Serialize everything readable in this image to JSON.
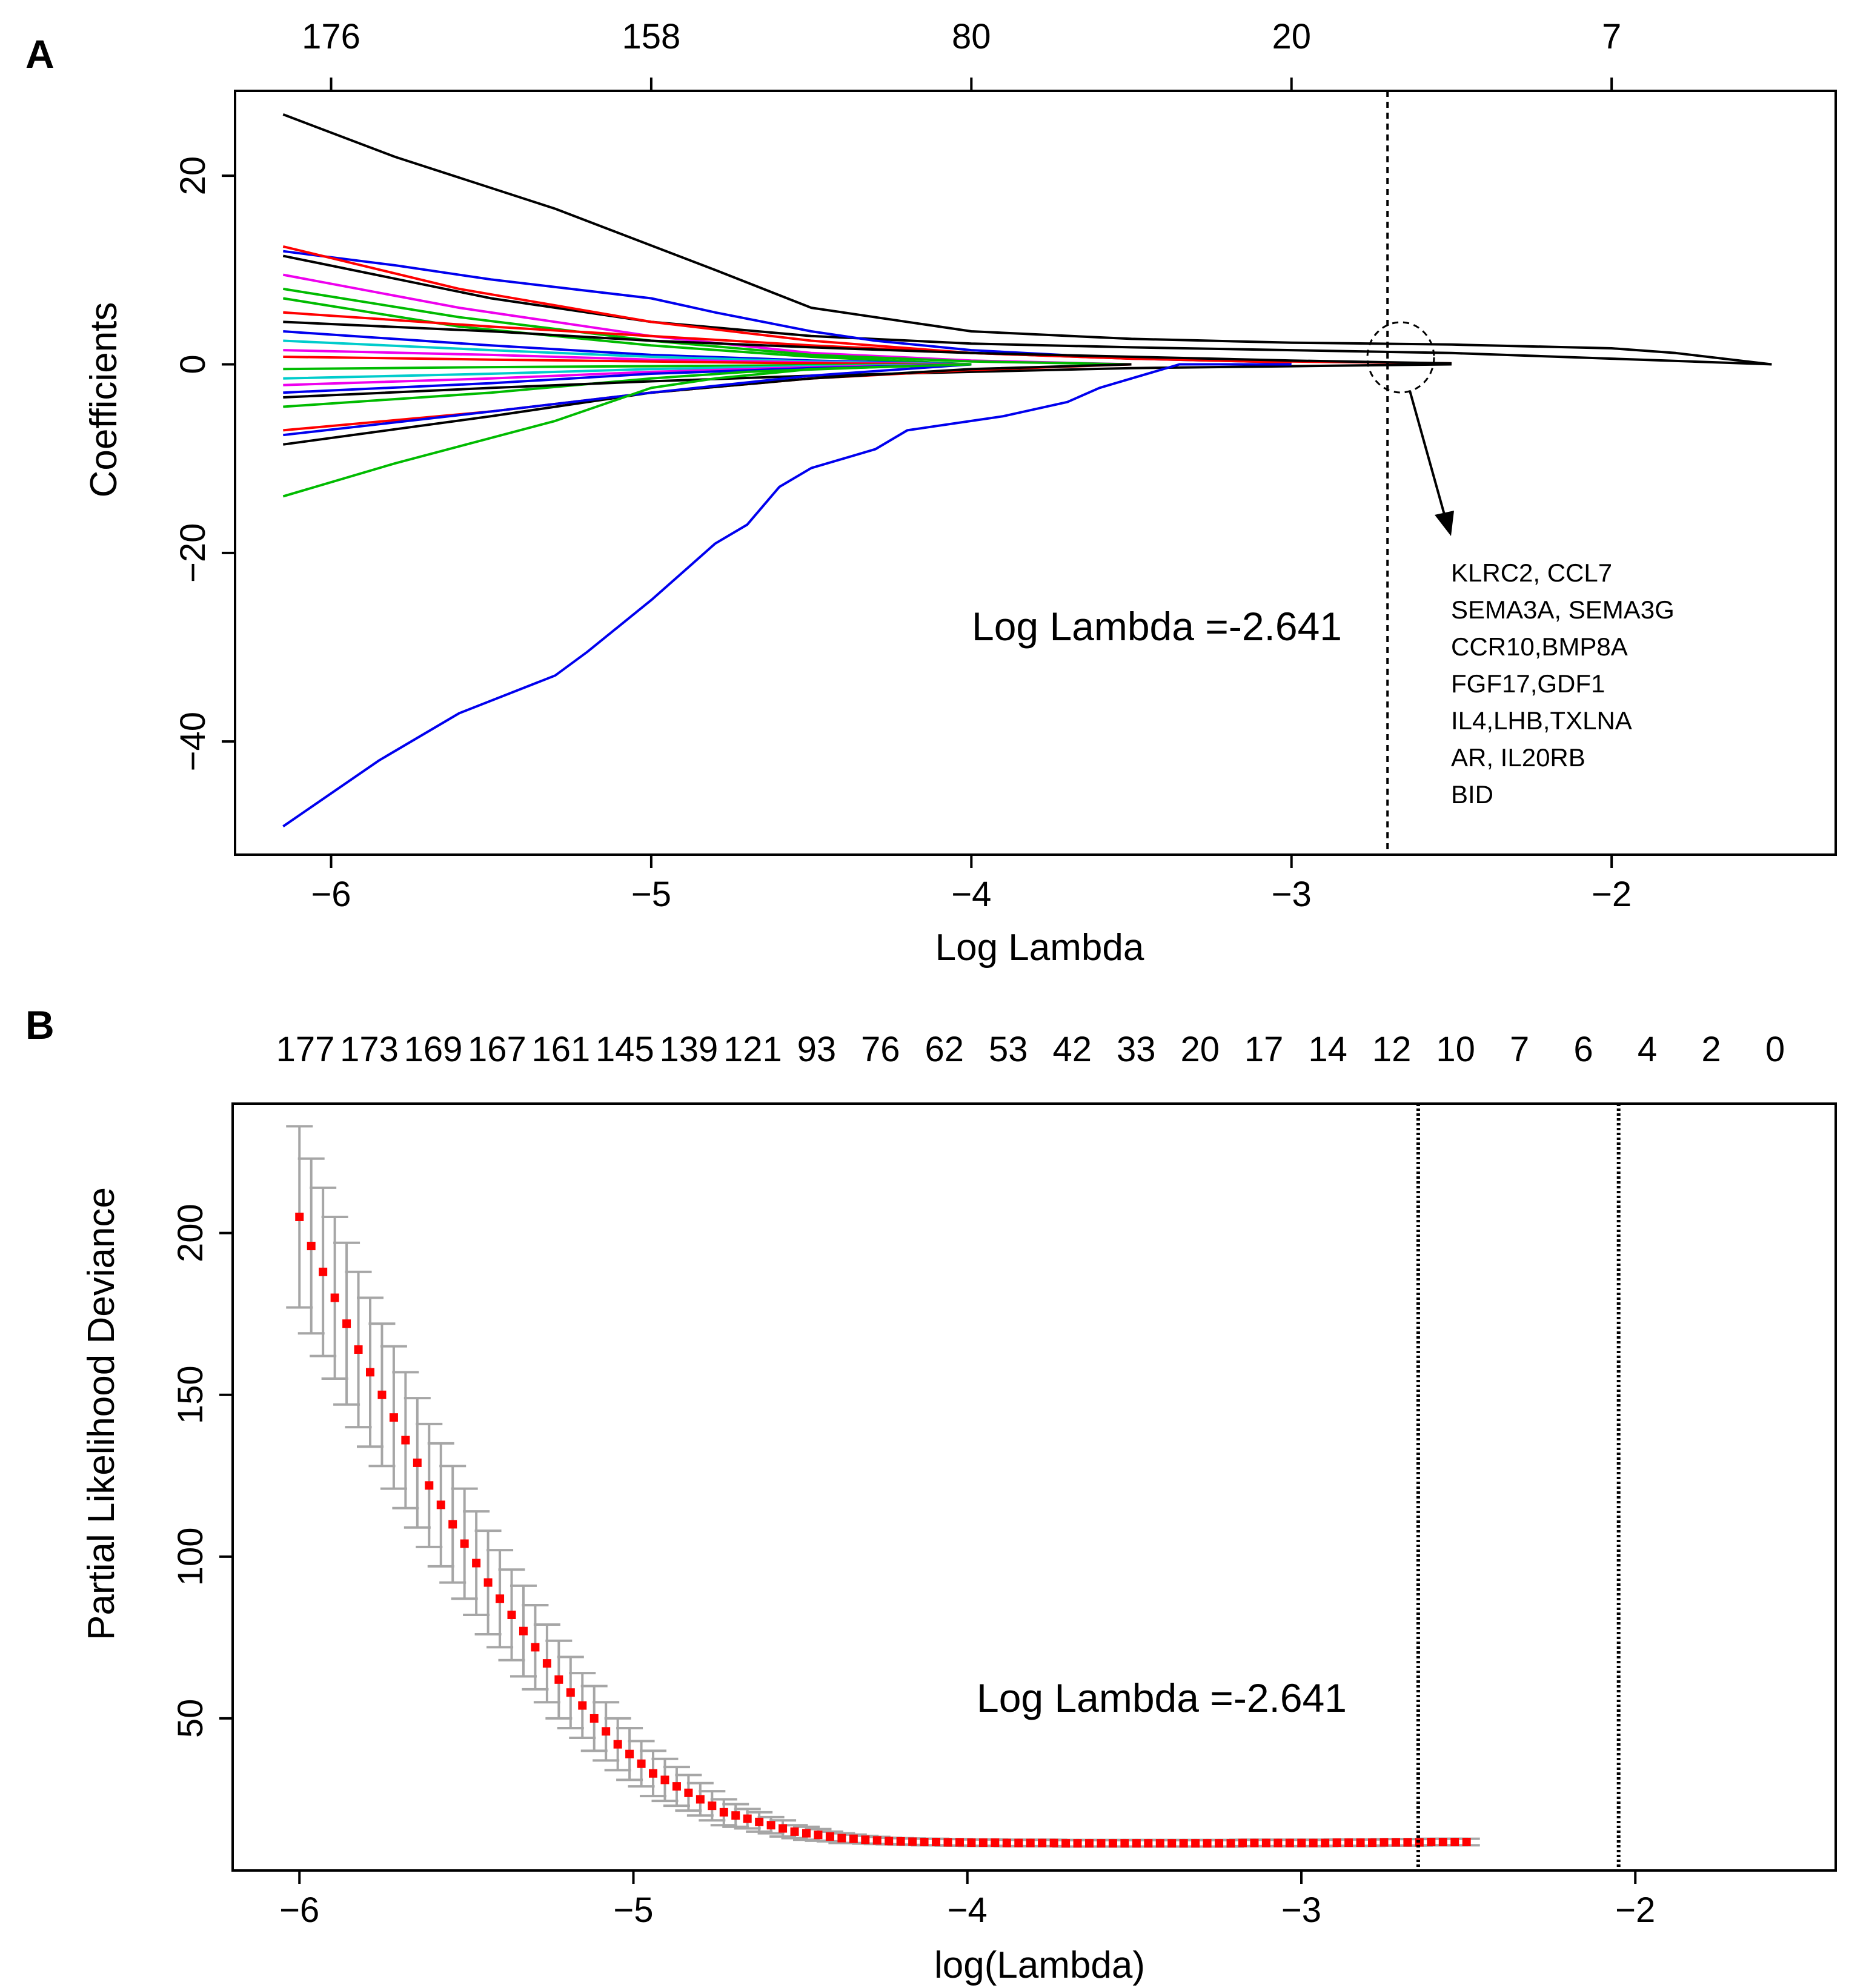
{
  "figure": {
    "panel_a_letter": "A",
    "panel_b_letter": "B"
  },
  "chart_data": [
    {
      "panel": "A",
      "type": "line",
      "xlabel": "Log Lambda",
      "ylabel": "Coefficients",
      "xlim": [
        -6.3,
        -1.3
      ],
      "ylim": [
        -52,
        29
      ],
      "x_ticks": [
        -6,
        -5,
        -4,
        -3,
        -2
      ],
      "y_ticks": [
        -40,
        -20,
        0,
        20
      ],
      "top_axis": {
        "ticks": [
          -6,
          -5,
          -4,
          -3,
          -2
        ],
        "labels": [
          "176",
          "158",
          "80",
          "20",
          "7"
        ]
      },
      "vline": -2.7,
      "annotation": "Log Lambda =-2.641",
      "selected_genes": [
        "KLRC2, CCL7",
        "SEMA3A, SEMA3G",
        "CCR10,BMP8A",
        "FGF17,GDF1",
        "IL4,LHB,TXLNA",
        "AR, IL20RB",
        "BID"
      ],
      "grid": false,
      "paths_note_colors": [
        "#000000",
        "#ff0000",
        "#00bb00",
        "#0000ee",
        "#00cccc",
        "#ee00ee"
      ],
      "x_end": -1.5,
      "series": [
        {
          "color": "#000000",
          "x": [
            -6.15,
            -5.8,
            -5.3,
            -4.8,
            -4.5,
            -4.0,
            -3.5,
            -3.0,
            -2.5,
            -2.0,
            -1.8,
            -1.5
          ],
          "y": [
            26.5,
            22,
            16.5,
            10,
            6,
            3.5,
            2.7,
            2.3,
            2.1,
            1.7,
            1.2,
            0
          ]
        },
        {
          "color": "#000000",
          "x": [
            -6.15,
            -5.5,
            -5.0,
            -4.5,
            -4.0,
            -3.5,
            -3.0,
            -2.5,
            -2.0,
            -1.5
          ],
          "y": [
            11.5,
            7,
            4.5,
            3,
            2.2,
            1.8,
            1.5,
            1.2,
            0.6,
            0
          ]
        },
        {
          "color": "#0000ee",
          "x": [
            -6.15,
            -5.8,
            -5.5,
            -5.0,
            -4.8,
            -4.5,
            -4.3,
            -4.0,
            -3.5,
            -3.0
          ],
          "y": [
            12,
            10.5,
            9,
            7,
            5.5,
            3.5,
            2.5,
            1.5,
            0.6,
            0.2
          ]
        },
        {
          "color": "#ff0000",
          "x": [
            -6.15,
            -5.6,
            -5.0,
            -4.5,
            -4.0,
            -3.5,
            -3.0,
            -2.5
          ],
          "y": [
            12.5,
            8,
            4.5,
            2.5,
            1.2,
            0.6,
            0.3,
            0.1
          ]
        },
        {
          "color": "#ee00ee",
          "x": [
            -6.15,
            -5.6,
            -5.0,
            -4.5,
            -4.0,
            -3.5
          ],
          "y": [
            9.5,
            6,
            3,
            1.2,
            0.4,
            0
          ]
        },
        {
          "color": "#00bb00",
          "x": [
            -6.15,
            -5.6,
            -5.0,
            -4.5,
            -4.0,
            -3.5
          ],
          "y": [
            8,
            5,
            2.5,
            1,
            0.3,
            0
          ]
        },
        {
          "color": "#00bb00",
          "x": [
            -6.15,
            -5.6,
            -5.0,
            -4.5,
            -4.0
          ],
          "y": [
            7,
            4,
            2,
            0.8,
            0
          ]
        },
        {
          "color": "#ff0000",
          "x": [
            -6.15,
            -5.5,
            -5.0,
            -4.5,
            -4.0,
            -3.5,
            -3.0
          ],
          "y": [
            5.5,
            4,
            3,
            2,
            1.2,
            0.6,
            0.2
          ]
        },
        {
          "color": "#000000",
          "x": [
            -6.15,
            -5.5,
            -5.0,
            -4.5,
            -4.0,
            -3.5,
            -3.0,
            -2.5
          ],
          "y": [
            4.5,
            3.5,
            2.5,
            1.8,
            1.2,
            0.8,
            0.4,
            0.1
          ]
        },
        {
          "color": "#0000ee",
          "x": [
            -6.15,
            -5.5,
            -5.0,
            -4.5,
            -4.0
          ],
          "y": [
            3.5,
            2,
            1,
            0.4,
            0
          ]
        },
        {
          "color": "#00cccc",
          "x": [
            -6.15,
            -5.5,
            -5.0,
            -4.5,
            -4.0
          ],
          "y": [
            2.5,
            1.5,
            0.8,
            0.3,
            0
          ]
        },
        {
          "color": "#ee00ee",
          "x": [
            -6.15,
            -5.5,
            -5.0,
            -4.5,
            -4.0
          ],
          "y": [
            1.5,
            1,
            0.5,
            0.2,
            0
          ]
        },
        {
          "color": "#ff0000",
          "x": [
            -6.15,
            -5.5,
            -5.0,
            -4.5,
            -4.0
          ],
          "y": [
            0.8,
            0.5,
            0.3,
            0.1,
            0
          ]
        },
        {
          "color": "#00bb00",
          "x": [
            -6.15,
            -5.5,
            -5.0,
            -4.5,
            -4.0
          ],
          "y": [
            -0.5,
            -0.3,
            -0.2,
            -0.1,
            0
          ]
        },
        {
          "color": "#00cccc",
          "x": [
            -6.15,
            -5.5,
            -5.0,
            -4.5,
            -4.0
          ],
          "y": [
            -1.5,
            -1,
            -0.5,
            -0.2,
            0
          ]
        },
        {
          "color": "#ee00ee",
          "x": [
            -6.15,
            -5.5,
            -5.0,
            -4.5,
            -4.0
          ],
          "y": [
            -2.2,
            -1.5,
            -0.8,
            -0.3,
            0
          ]
        },
        {
          "color": "#0000ee",
          "x": [
            -6.15,
            -5.5,
            -5.0,
            -4.5,
            -4.0
          ],
          "y": [
            -3,
            -2,
            -1,
            -0.4,
            0
          ]
        },
        {
          "color": "#00bb00",
          "x": [
            -6.15,
            -5.5,
            -5.0,
            -4.7,
            -4.3,
            -4.0
          ],
          "y": [
            -4.5,
            -3,
            -1.5,
            -0.8,
            -0.3,
            0
          ]
        },
        {
          "color": "#000000",
          "x": [
            -6.15,
            -5.5,
            -5.0,
            -4.5,
            -4.0,
            -3.5,
            -3.0,
            -2.5
          ],
          "y": [
            -3.5,
            -2.5,
            -1.8,
            -1.2,
            -0.8,
            -0.4,
            -0.2,
            0
          ]
        },
        {
          "color": "#ff0000",
          "x": [
            -6.15,
            -5.5,
            -5.0,
            -4.5,
            -4.0,
            -3.5
          ],
          "y": [
            -7,
            -5,
            -3,
            -1.5,
            -0.6,
            0
          ]
        },
        {
          "color": "#000000",
          "x": [
            -6.15,
            -5.5,
            -5.0,
            -4.5,
            -4.0,
            -3.5
          ],
          "y": [
            -8.5,
            -5.5,
            -3,
            -1.5,
            -0.5,
            0
          ]
        },
        {
          "color": "#0000ee",
          "x": [
            -6.15,
            -5.5,
            -5.0,
            -4.5,
            -4.0
          ],
          "y": [
            -7.5,
            -5,
            -3,
            -1.2,
            0
          ]
        },
        {
          "color": "#00bb00",
          "x": [
            -6.15,
            -5.8,
            -5.3,
            -5.0,
            -4.8,
            -4.5,
            -4.0
          ],
          "y": [
            -14,
            -10.5,
            -6,
            -2.5,
            -1.5,
            -0.5,
            0
          ]
        },
        {
          "color": "#0000ee",
          "x": [
            -6.15,
            -5.85,
            -5.6,
            -5.3,
            -5.2,
            -5.0,
            -4.9,
            -4.8,
            -4.7,
            -4.6,
            -4.5,
            -4.3,
            -4.2,
            -4.0,
            -3.9,
            -3.7,
            -3.6,
            -3.5,
            -3.35,
            -3.0
          ],
          "y": [
            -49,
            -42,
            -37,
            -33,
            -30.5,
            -25,
            -22,
            -19,
            -17,
            -13,
            -11,
            -9,
            -7,
            -6,
            -5.5,
            -4,
            -2.5,
            -1.5,
            0,
            0
          ]
        }
      ]
    },
    {
      "panel": "B",
      "type": "scatter",
      "xlabel": "log(Lambda)",
      "ylabel": "Partial Likelihood Deviance",
      "xlim": [
        -6.2,
        -1.4
      ],
      "ylim": [
        3,
        240
      ],
      "x_ticks": [
        -6,
        -5,
        -4,
        -3,
        -2
      ],
      "y_ticks": [
        50,
        100,
        150,
        200
      ],
      "top_axis": {
        "labels": [
          "177",
          "173",
          "169",
          "167",
          "161",
          "145",
          "139",
          "121",
          "93",
          "76",
          "62",
          "53",
          "42",
          "33",
          "20",
          "17",
          "14",
          "12",
          "10",
          "7",
          "6",
          "4",
          "2",
          "0"
        ]
      },
      "vlines": [
        -2.65,
        -2.05
      ],
      "annotation": "Log Lambda =-2.641",
      "grid": false,
      "point_color": "#ff0000",
      "errorbar_color": "#a6a6a6",
      "x_start": -6.0,
      "x_step": 0.0353,
      "n_points": 100,
      "x_every": 1,
      "values": [
        205,
        196,
        188,
        180,
        172,
        164,
        157,
        150,
        143,
        136,
        129,
        122,
        116,
        110,
        104,
        98,
        92,
        87,
        82,
        77,
        72,
        67,
        62,
        58,
        54,
        50,
        46,
        42,
        39,
        36,
        33,
        31,
        29,
        27,
        25,
        23,
        21,
        20,
        19,
        18,
        17,
        16,
        15,
        14.5,
        14,
        13.5,
        13,
        12.8,
        12.5,
        12.3,
        12.1,
        12,
        11.9,
        11.8,
        11.8,
        11.7,
        11.7,
        11.6,
        11.6,
        11.6,
        11.5,
        11.5,
        11.5,
        11.5,
        11.5,
        11.4,
        11.4,
        11.4,
        11.4,
        11.4,
        11.4,
        11.4,
        11.4,
        11.4,
        11.4,
        11.4,
        11.4,
        11.4,
        11.4,
        11.4,
        11.5,
        11.5,
        11.5,
        11.5,
        11.5,
        11.5,
        11.5,
        11.5,
        11.6,
        11.6,
        11.6,
        11.6,
        11.7,
        11.7,
        11.7,
        11.7,
        11.8,
        11.8,
        11.8,
        11.8
      ],
      "errors": [
        28,
        27,
        26,
        25,
        25,
        24,
        23,
        22,
        22,
        21,
        20,
        19,
        19,
        18,
        17,
        16,
        16,
        15,
        14,
        14,
        13,
        12,
        12,
        11,
        10,
        10,
        9,
        8,
        8,
        7,
        7,
        6.5,
        6,
        5.5,
        5,
        4.5,
        4,
        3.5,
        3,
        3,
        2.5,
        2.5,
        2,
        2,
        1.8,
        1.5,
        1.5,
        1.3,
        1.2,
        1.1,
        1,
        1,
        1,
        1,
        1,
        1,
        1,
        1,
        1,
        1,
        1,
        1,
        1,
        1,
        1,
        1,
        1,
        1,
        1,
        1,
        1,
        1,
        1,
        1,
        1,
        1,
        1,
        1,
        1,
        1,
        1,
        1,
        1,
        1,
        1,
        1,
        1,
        1,
        1,
        1,
        1,
        1,
        1,
        1,
        1,
        1,
        1,
        1,
        1,
        1
      ]
    }
  ]
}
